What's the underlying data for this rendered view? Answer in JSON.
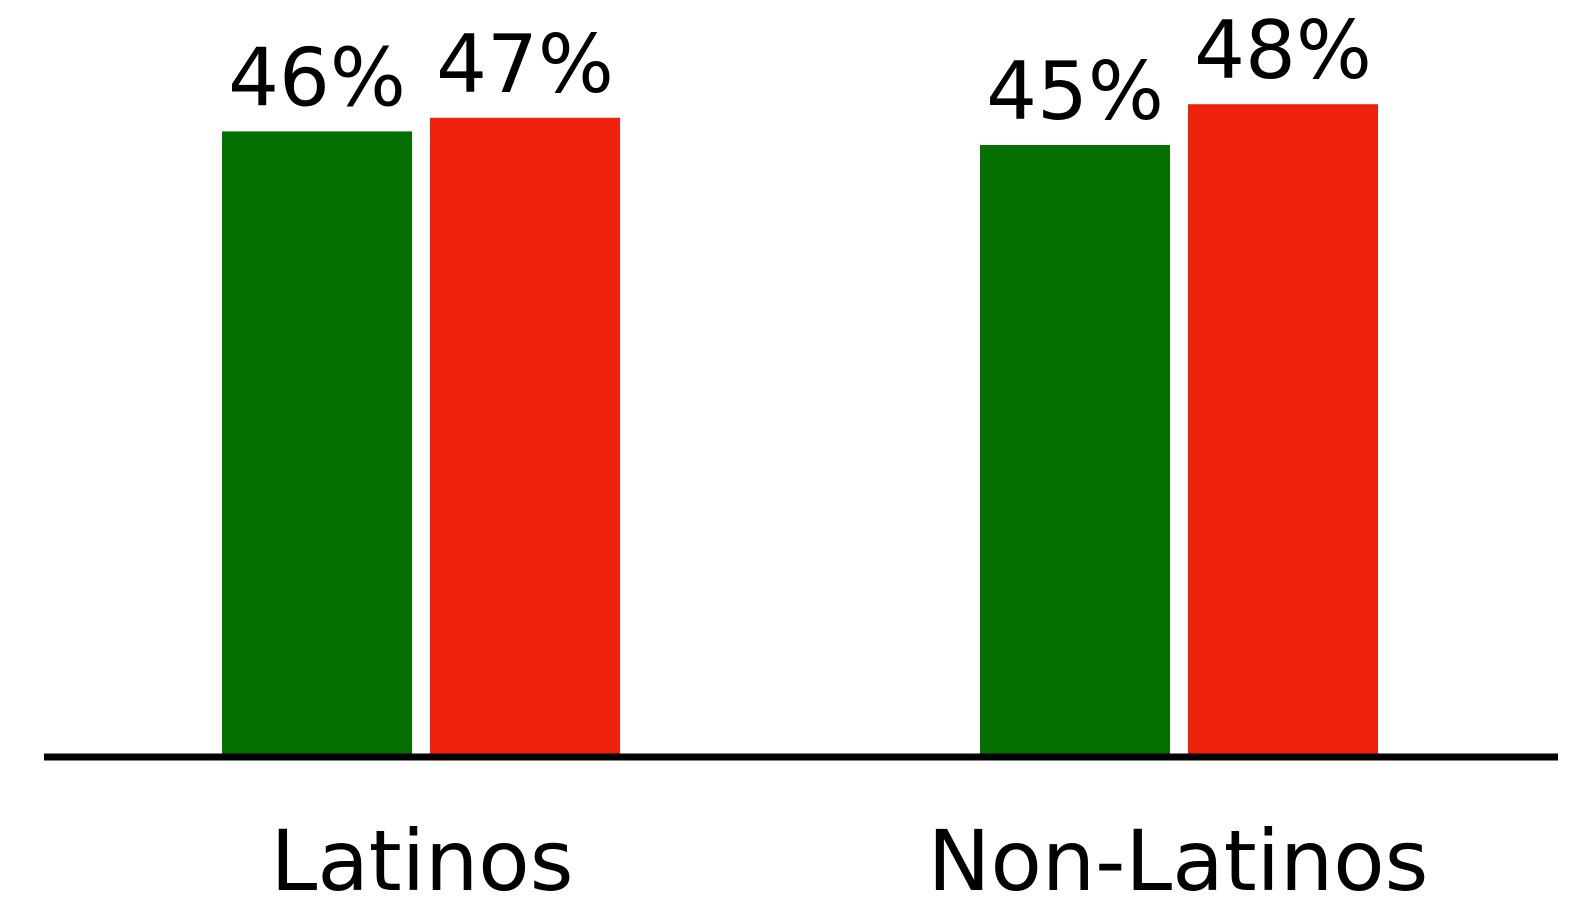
{
  "chart_data": {
    "type": "bar",
    "categories": [
      "Latinos",
      "Non-Latinos"
    ],
    "series": [
      {
        "values": [
          46,
          45
        ],
        "color": "#037000"
      },
      {
        "values": [
          47,
          48
        ],
        "color": "#ee220c"
      }
    ],
    "value_labels": [
      [
        "46%",
        "45%"
      ],
      [
        "47%",
        "48%"
      ]
    ],
    "ylim": [
      0,
      50
    ],
    "grid": false,
    "axis_color": "#000000"
  }
}
